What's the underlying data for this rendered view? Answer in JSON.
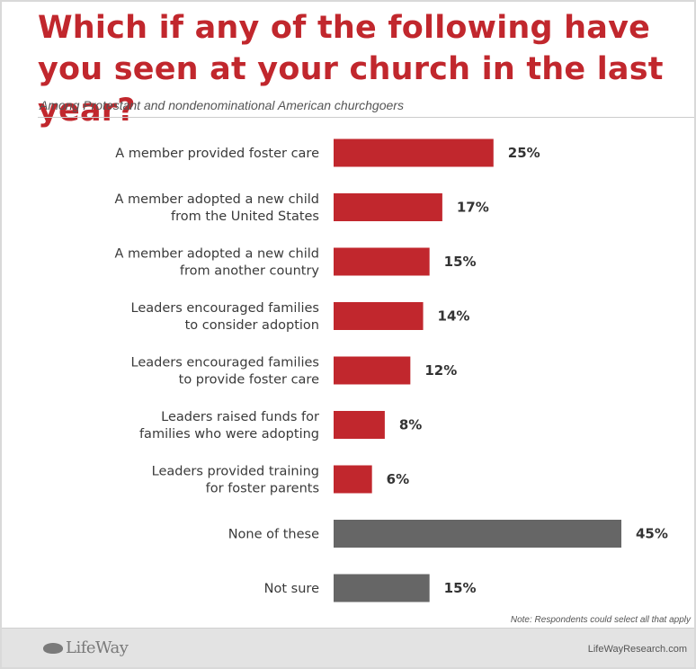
{
  "header": {
    "title_line1": "Which if any of the following have",
    "title_line2": "you seen at your church in the last year?",
    "subtitle": "Among Protestant and nondenominational American churchgoers"
  },
  "colors": {
    "red": "#c1272d",
    "gray": "#666666"
  },
  "chart_data": {
    "type": "bar",
    "orientation": "horizontal",
    "title": "Which if any of the following have you seen at your church in the last year?",
    "subtitle": "Among Protestant and nondenominational American churchgoers",
    "categories": [
      [
        "A member provided foster care"
      ],
      [
        "A member adopted a new child",
        "from the United States"
      ],
      [
        "A member adopted a new child",
        "from another country"
      ],
      [
        "Leaders encouraged families",
        "to consider adoption"
      ],
      [
        "Leaders encouraged families",
        "to provide foster care"
      ],
      [
        "Leaders raised funds for",
        "families who were adopting"
      ],
      [
        "Leaders provided training",
        "for foster parents"
      ],
      [
        "None of these"
      ],
      [
        "Not sure"
      ]
    ],
    "values": [
      25,
      17,
      15,
      14,
      12,
      8,
      6,
      45,
      15
    ],
    "value_labels": [
      "25%",
      "17%",
      "15%",
      "14%",
      "12%",
      "8%",
      "6%",
      "45%",
      "15%"
    ],
    "bar_colors": [
      "#c1272d",
      "#c1272d",
      "#c1272d",
      "#c1272d",
      "#c1272d",
      "#c1272d",
      "#c1272d",
      "#666666",
      "#666666"
    ],
    "xlim": [
      0,
      45
    ],
    "grid": false,
    "legend": "none"
  },
  "footer": {
    "note": "Note: Respondents could select all that apply",
    "logo": "LifeWay",
    "site": "LifeWayResearch.com"
  }
}
